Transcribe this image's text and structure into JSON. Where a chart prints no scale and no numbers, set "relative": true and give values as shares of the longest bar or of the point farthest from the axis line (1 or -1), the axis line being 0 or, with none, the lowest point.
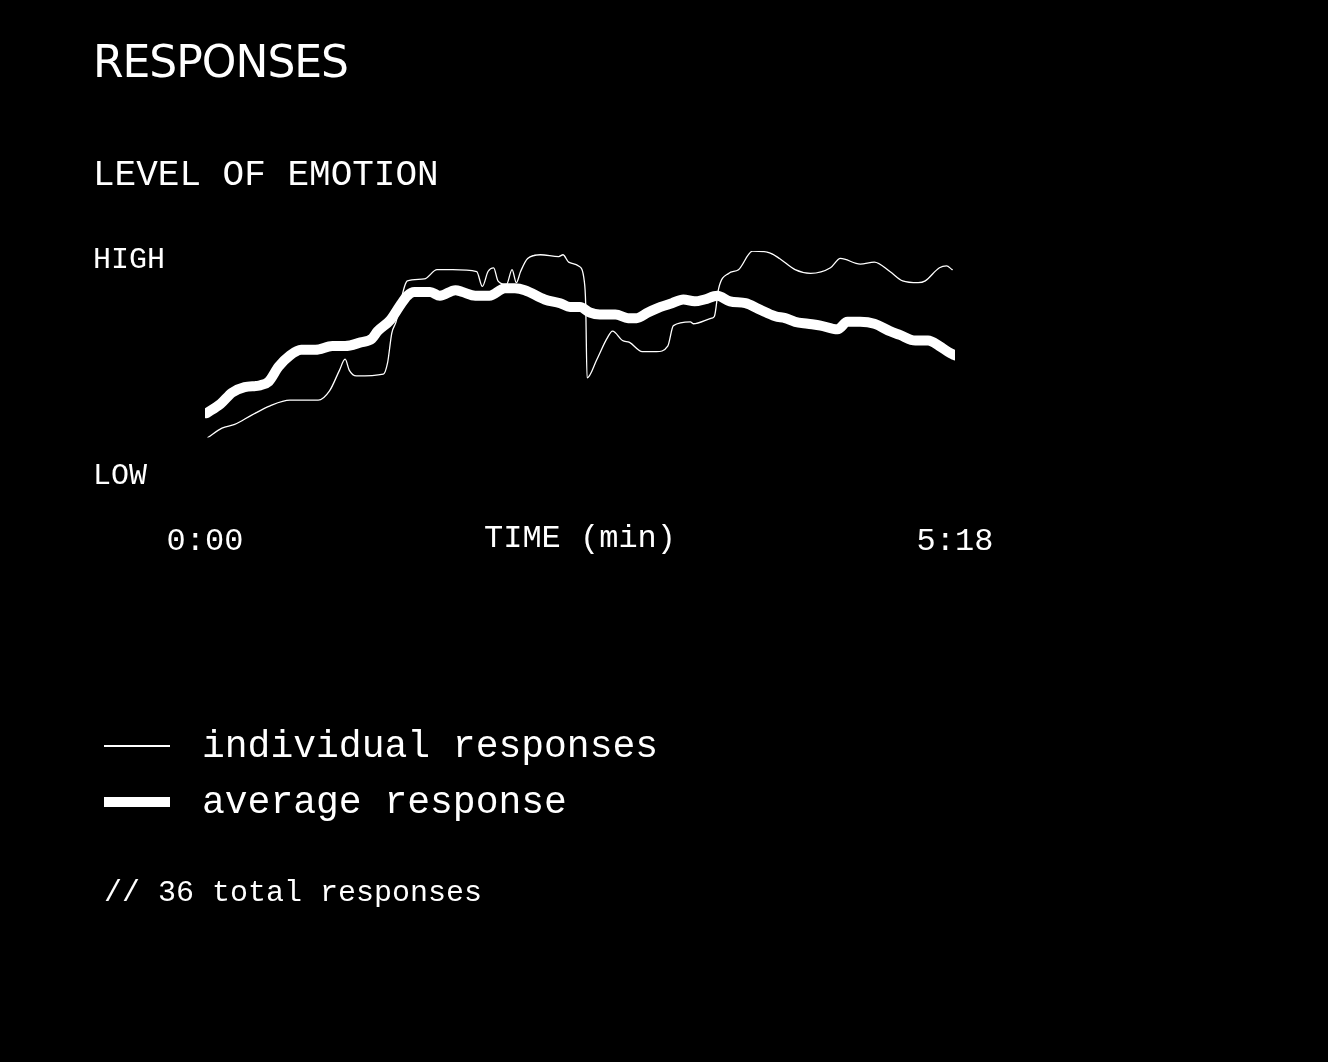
{
  "chart_data": {
    "type": "line",
    "title": "RESPONSES",
    "subtitle": "LEVEL OF EMOTION",
    "xlabel": "TIME (min)",
    "annotations": [
      "HIGH",
      "LOW",
      "// 36 total responses"
    ],
    "relative": true,
    "xlim": [
      0,
      5.3
    ],
    "xticks": [
      {
        "value": 0,
        "label": "0:00"
      },
      {
        "value": 5.3,
        "label": "5:18"
      }
    ],
    "grid": false,
    "legend": "bottom left",
    "marker": "none",
    "line_style": "solid",
    "series": [
      {
        "name": "individual responses",
        "color": "#ffffff",
        "x": [
          0.02,
          0.12,
          0.21,
          0.33,
          0.46,
          0.6,
          0.74,
          0.8,
          0.88,
          0.95,
          0.99,
          1.02,
          1.07,
          1.26,
          1.29,
          1.32,
          1.35,
          1.41,
          1.43,
          1.55,
          1.64,
          1.75,
          1.92,
          1.96,
          2.0,
          2.04,
          2.07,
          2.13,
          2.17,
          2.2,
          2.23,
          2.28,
          2.37,
          2.5,
          2.53,
          2.57,
          2.64,
          2.68,
          2.69,
          2.7,
          2.77,
          2.84,
          2.88,
          2.95,
          3.0,
          3.09,
          3.19,
          3.27,
          3.31,
          3.43,
          3.45,
          3.58,
          3.6,
          3.63,
          3.7,
          3.77,
          3.87,
          3.99,
          4.06,
          4.17,
          4.28,
          4.42,
          4.49,
          4.63,
          4.73,
          4.84,
          4.93,
          5.04,
          5.09,
          5.19,
          5.24,
          5.28
        ],
        "values": [
          0,
          0.05,
          0.07,
          0.12,
          0.17,
          0.2,
          0.2,
          0.2,
          0.25,
          0.36,
          0.42,
          0.36,
          0.33,
          0.34,
          0.4,
          0.56,
          0.62,
          0.81,
          0.84,
          0.85,
          0.9,
          0.9,
          0.89,
          0.81,
          0.89,
          0.91,
          0.84,
          0.82,
          0.9,
          0.83,
          0.89,
          0.96,
          0.98,
          0.97,
          0.98,
          0.94,
          0.92,
          0.84,
          0.72,
          0.32,
          0.42,
          0.53,
          0.57,
          0.52,
          0.51,
          0.46,
          0.46,
          0.49,
          0.6,
          0.62,
          0.61,
          0.64,
          0.65,
          0.8,
          0.88,
          0.9,
          1,
          0.99,
          0.96,
          0.9,
          0.88,
          0.91,
          0.96,
          0.93,
          0.94,
          0.89,
          0.84,
          0.83,
          0.84,
          0.91,
          0.92,
          0.9
        ]
      },
      {
        "name": "average response",
        "color": "#ffffff",
        "x": [
          0.01,
          0.11,
          0.19,
          0.28,
          0.39,
          0.45,
          0.52,
          0.6,
          0.68,
          0.78,
          0.9,
          0.99,
          1.1,
          1.18,
          1.22,
          1.31,
          1.38,
          1.43,
          1.48,
          1.59,
          1.66,
          1.77,
          1.82,
          1.91,
          2.01,
          2.12,
          2.19,
          2.26,
          2.4,
          2.51,
          2.58,
          2.65,
          2.72,
          2.79,
          2.9,
          2.99,
          3.05,
          3.13,
          3.22,
          3.3,
          3.38,
          3.46,
          3.53,
          3.62,
          3.71,
          3.82,
          3.91,
          4.03,
          4.1,
          4.17,
          4.26,
          4.35,
          4.47,
          4.54,
          4.63,
          4.73,
          4.84,
          4.91,
          5.02,
          5.11,
          5.19,
          5.25,
          5.3
        ],
        "values": [
          0.13,
          0.18,
          0.24,
          0.27,
          0.28,
          0.3,
          0.38,
          0.44,
          0.47,
          0.47,
          0.49,
          0.49,
          0.51,
          0.53,
          0.57,
          0.63,
          0.71,
          0.76,
          0.78,
          0.78,
          0.76,
          0.79,
          0.78,
          0.76,
          0.76,
          0.8,
          0.8,
          0.79,
          0.74,
          0.72,
          0.7,
          0.7,
          0.67,
          0.66,
          0.66,
          0.64,
          0.64,
          0.67,
          0.7,
          0.72,
          0.74,
          0.73,
          0.74,
          0.76,
          0.73,
          0.72,
          0.69,
          0.65,
          0.64,
          0.62,
          0.61,
          0.6,
          0.58,
          0.62,
          0.62,
          0.61,
          0.57,
          0.55,
          0.52,
          0.52,
          0.49,
          0.46,
          0.44
        ]
      }
    ]
  }
}
